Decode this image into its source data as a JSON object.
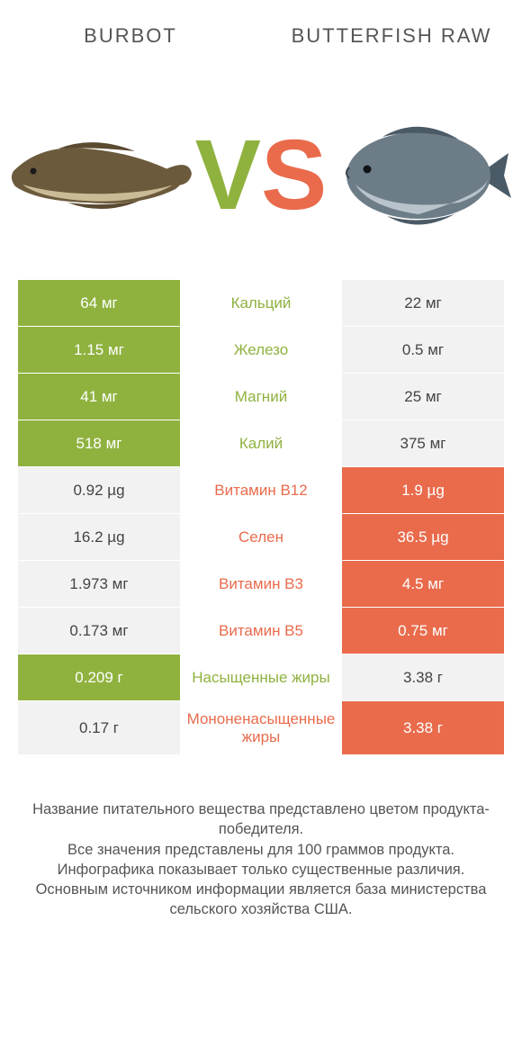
{
  "colors": {
    "left": "#8fb23f",
    "right": "#e96b4c",
    "neutral_bg": "#f2f2f2",
    "neutral_text": "#444444",
    "page_bg": "#ffffff"
  },
  "header": {
    "left_title": "BURBOT",
    "right_title": "BUTTERFISH RAW"
  },
  "vs": {
    "v": "V",
    "s": "S"
  },
  "rows": [
    {
      "left": "64 мг",
      "mid": "Кальций",
      "right": "22 мг",
      "winner": "left"
    },
    {
      "left": "1.15 мг",
      "mid": "Железо",
      "right": "0.5 мг",
      "winner": "left"
    },
    {
      "left": "41 мг",
      "mid": "Магний",
      "right": "25 мг",
      "winner": "left"
    },
    {
      "left": "518 мг",
      "mid": "Калий",
      "right": "375 мг",
      "winner": "left"
    },
    {
      "left": "0.92 µg",
      "mid": "Витамин B12",
      "right": "1.9 µg",
      "winner": "right"
    },
    {
      "left": "16.2 µg",
      "mid": "Селен",
      "right": "36.5 µg",
      "winner": "right"
    },
    {
      "left": "1.973 мг",
      "mid": "Витамин B3",
      "right": "4.5 мг",
      "winner": "right"
    },
    {
      "left": "0.173 мг",
      "mid": "Витамин B5",
      "right": "0.75 мг",
      "winner": "right"
    },
    {
      "left": "0.209 г",
      "mid": "Насыщенные жиры",
      "right": "3.38 г",
      "winner": "left"
    },
    {
      "left": "0.17 г",
      "mid": "Мононенасыщенные жиры",
      "right": "3.38 г",
      "winner": "right"
    }
  ],
  "footer": {
    "line1": "Название питательного вещества представлено цветом продукта-победителя.",
    "line2": "Все значения представлены для 100 граммов продукта.",
    "line3": "Инфографика показывает только существенные различия.",
    "line4": "Основным источником информации является база министерства сельского хозяйства США."
  },
  "fish_svg": {
    "burbot_body": "#6b5a3c",
    "burbot_belly": "#c9bb95",
    "butterfish_body": "#6d7d88",
    "butterfish_belly": "#b8c3cb",
    "butterfish_fin": "#4a5a66"
  }
}
